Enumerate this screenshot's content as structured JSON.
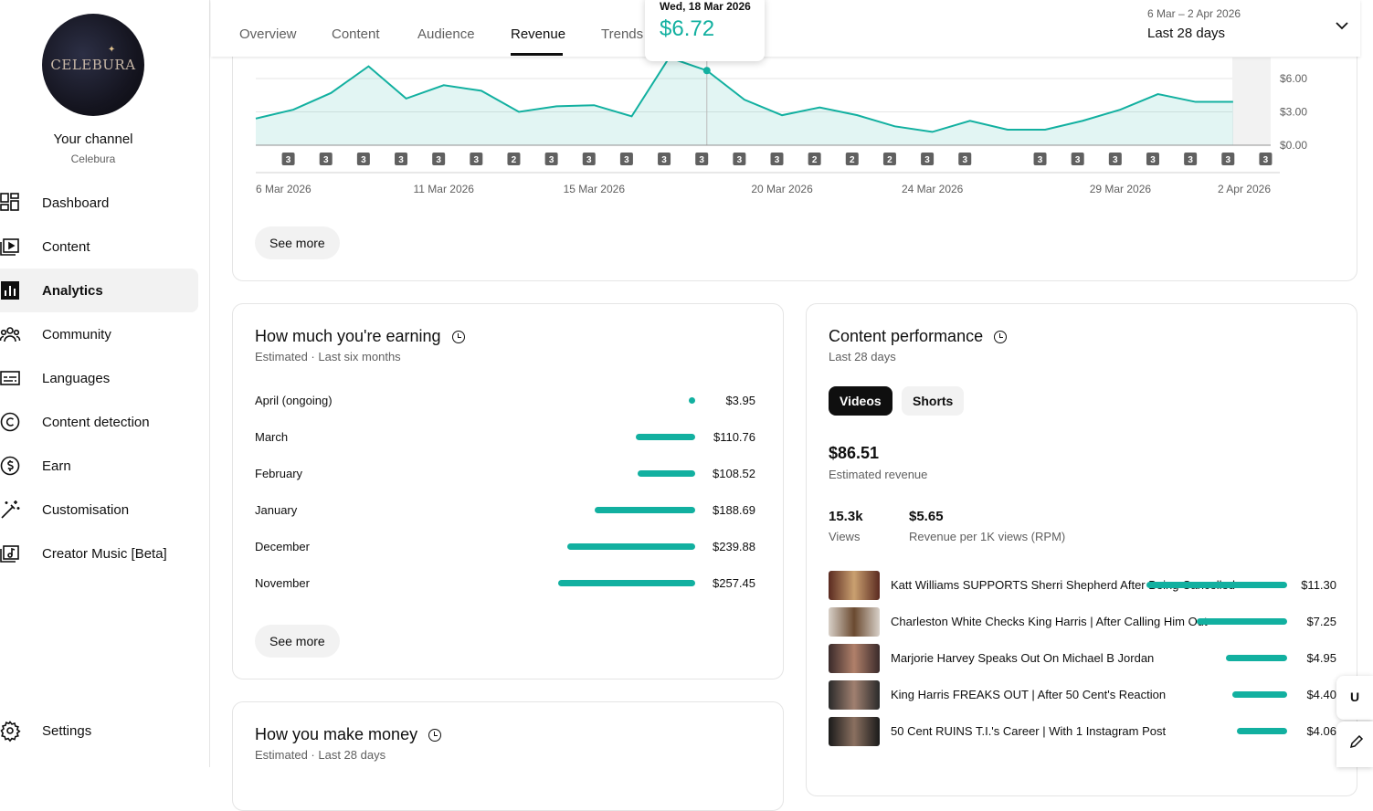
{
  "sidebar": {
    "channel_title": "Your channel",
    "channel_name": "Celebura",
    "avatar_text": "CELEBURA",
    "items": [
      {
        "label": "Dashboard",
        "icon": "dashboard-icon"
      },
      {
        "label": "Content",
        "icon": "content-icon"
      },
      {
        "label": "Analytics",
        "icon": "analytics-icon",
        "active": true
      },
      {
        "label": "Community",
        "icon": "community-icon"
      },
      {
        "label": "Languages",
        "icon": "languages-icon"
      },
      {
        "label": "Content detection",
        "icon": "copyright-icon"
      },
      {
        "label": "Earn",
        "icon": "dollar-icon"
      },
      {
        "label": "Customisation",
        "icon": "magic-wand-icon"
      },
      {
        "label": "Creator Music [Beta]",
        "icon": "music-icon"
      }
    ],
    "settings_label": "Settings"
  },
  "tabs": [
    {
      "label": "Overview"
    },
    {
      "label": "Content"
    },
    {
      "label": "Audience"
    },
    {
      "label": "Revenue",
      "active": true
    },
    {
      "label": "Trends"
    }
  ],
  "date_range": {
    "range": "6 Mar – 2 Apr 2026",
    "label": "Last 28 days"
  },
  "tooltip": {
    "date": "Wed, 18 Mar 2026",
    "value": "$6.72"
  },
  "chart_data": {
    "type": "area",
    "x": [
      "6 Mar",
      "7 Mar",
      "8 Mar",
      "9 Mar",
      "10 Mar",
      "11 Mar",
      "12 Mar",
      "13 Mar",
      "14 Mar",
      "15 Mar",
      "16 Mar",
      "17 Mar",
      "18 Mar",
      "19 Mar",
      "20 Mar",
      "21 Mar",
      "22 Mar",
      "23 Mar",
      "24 Mar",
      "25 Mar",
      "26 Mar",
      "27 Mar",
      "28 Mar",
      "29 Mar",
      "30 Mar",
      "31 Mar",
      "1 Apr"
    ],
    "values": [
      2.4,
      3.2,
      4.7,
      7.1,
      4.2,
      5.4,
      4.9,
      3.0,
      3.5,
      3.6,
      2.6,
      8.0,
      6.72,
      4.1,
      2.7,
      3.4,
      2.7,
      1.7,
      1.2,
      2.2,
      1.4,
      1.4,
      2.2,
      3.2,
      4.6,
      3.9,
      3.9
    ],
    "markers": [
      "3",
      "3",
      "3",
      "3",
      "3",
      "3",
      "2",
      "3",
      "3",
      "3",
      "3",
      "3",
      "3",
      "3",
      "2",
      "2",
      "2",
      "3",
      "3",
      "",
      "3",
      "3",
      "3",
      "3",
      "3",
      "3",
      "3"
    ],
    "xtick_labels": [
      "6 Mar 2026",
      "11 Mar 2026",
      "15 Mar 2026",
      "20 Mar 2026",
      "24 Mar 2026",
      "29 Mar 2026",
      "2 Apr 2026"
    ],
    "ytick_labels": [
      "$6.00",
      "$3.00",
      "$0.00"
    ],
    "ylim": [
      0,
      7.5
    ],
    "color": "#12b0a0"
  },
  "revenue_card": {
    "see_more": "See more"
  },
  "earning": {
    "title": "How much you're earning",
    "subtitle": "Estimated · Last six months",
    "rows": [
      {
        "month": "April (ongoing)",
        "value": "$3.95",
        "amount": 3.95
      },
      {
        "month": "March",
        "value": "$110.76",
        "amount": 110.76
      },
      {
        "month": "February",
        "value": "$108.52",
        "amount": 108.52
      },
      {
        "month": "January",
        "value": "$188.69",
        "amount": 188.69
      },
      {
        "month": "December",
        "value": "$239.88",
        "amount": 239.88
      },
      {
        "month": "November",
        "value": "$257.45",
        "amount": 257.45
      }
    ],
    "see_more": "See more"
  },
  "make_money": {
    "title": "How you make money",
    "subtitle": "Estimated · Last 28 days"
  },
  "performance": {
    "title": "Content performance",
    "subtitle": "Last 28 days",
    "pill_videos": "Videos",
    "pill_shorts": "Shorts",
    "revenue": "$86.51",
    "revenue_label": "Estimated revenue",
    "views": "15.3k",
    "views_label": "Views",
    "rpm": "$5.65",
    "rpm_label": "Revenue per 1K views (RPM)",
    "videos": [
      {
        "title": "Katt Williams SUPPORTS Sherri Shepherd After Being Cancelled",
        "value": "$11.30",
        "amount": 11.3
      },
      {
        "title": "Charleston White Checks King Harris | After Calling Him Out",
        "value": "$7.25",
        "amount": 7.25
      },
      {
        "title": "Marjorie Harvey Speaks Out On Michael B Jordan",
        "value": "$4.95",
        "amount": 4.95
      },
      {
        "title": "King Harris FREAKS OUT | After 50 Cent's Reaction",
        "value": "$4.40",
        "amount": 4.4
      },
      {
        "title": "50 Cent RUINS T.I.'s Career | With 1 Instagram Post",
        "value": "$4.06",
        "amount": 4.06
      }
    ]
  },
  "floating_label": "U"
}
